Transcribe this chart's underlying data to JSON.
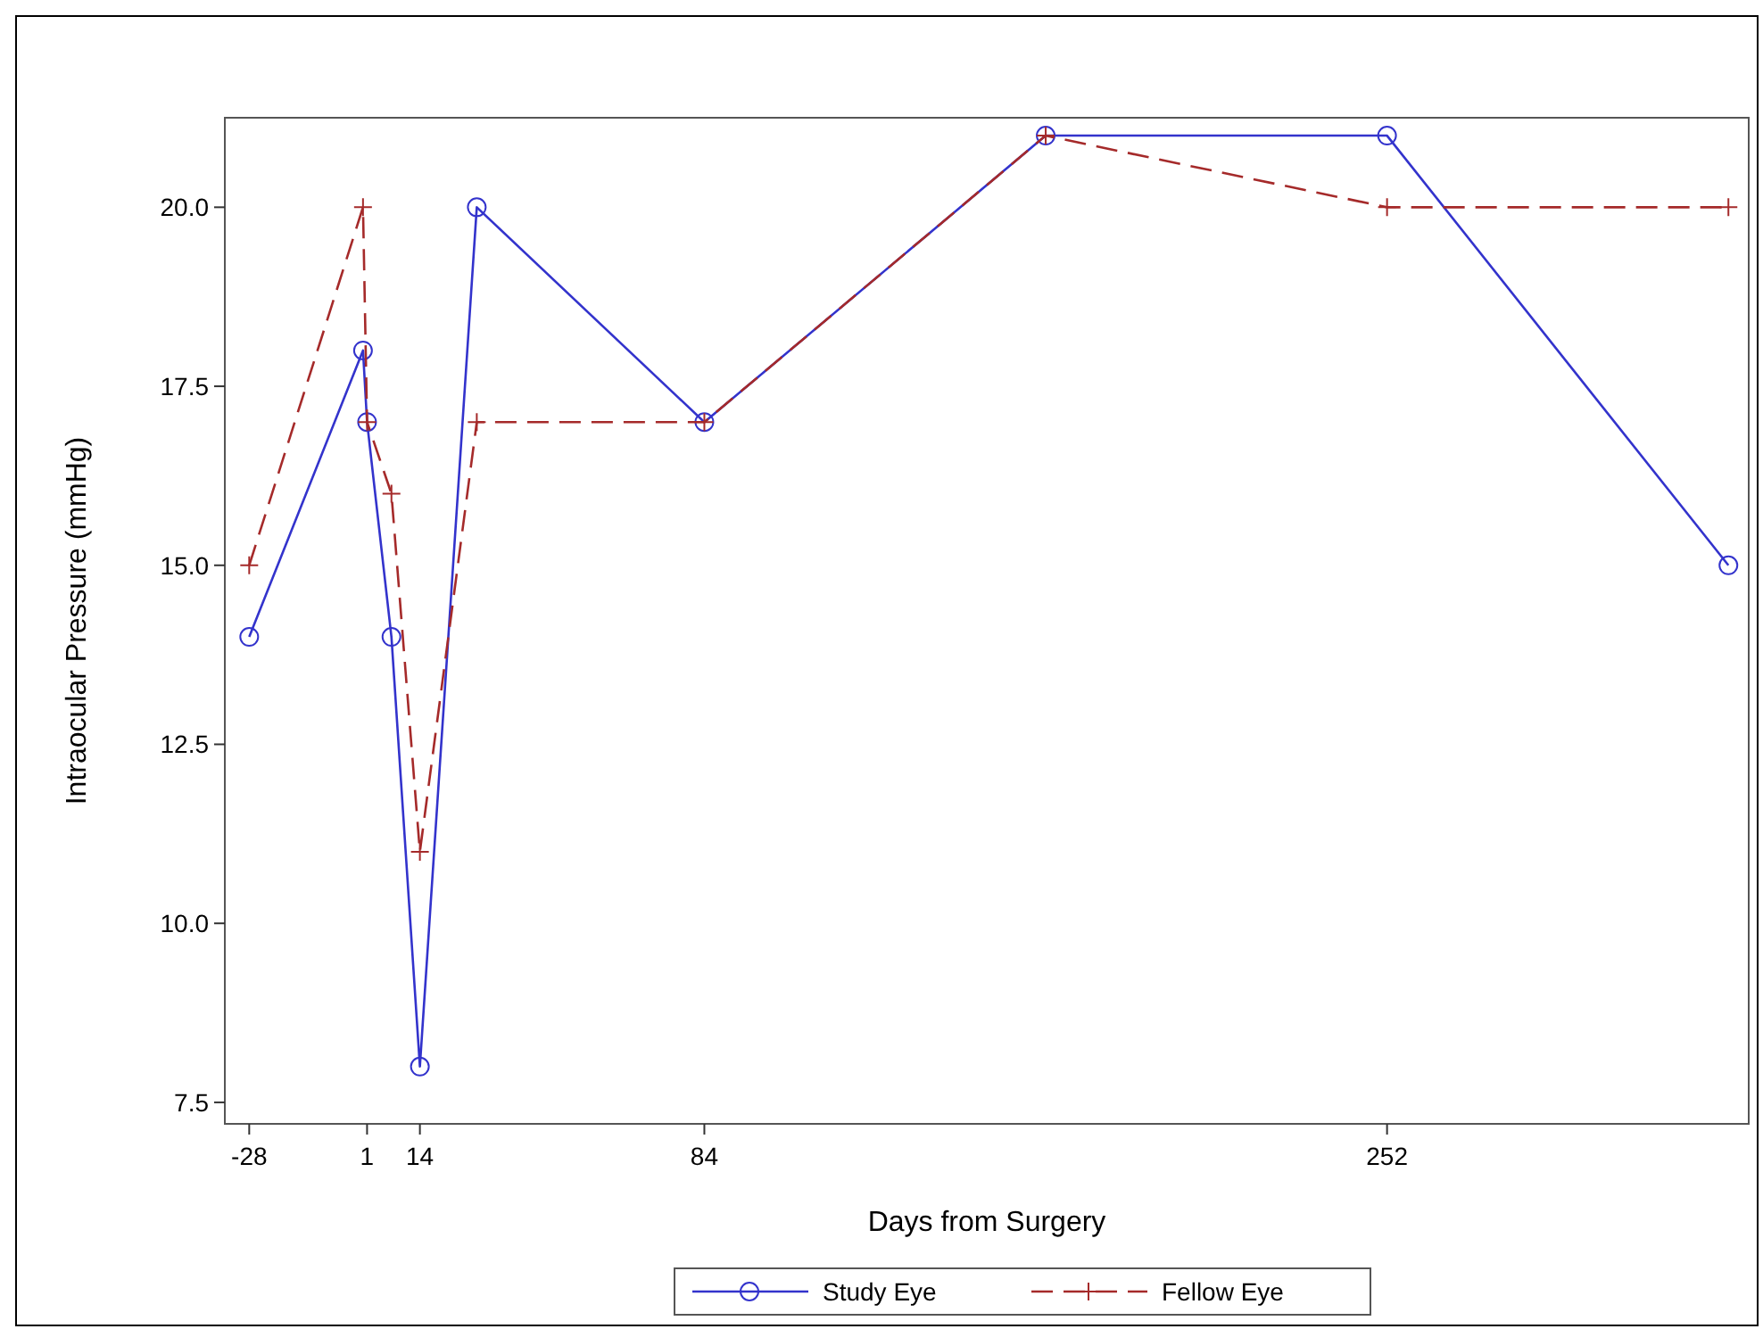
{
  "chart_data": {
    "type": "line",
    "xlabel": "Days from Surgery",
    "ylabel": "Intraocular Pressure (mmHg)",
    "xlim": [
      -34,
      341
    ],
    "ylim": [
      7.2,
      21.25
    ],
    "xticks": [
      -28,
      1,
      14,
      84,
      252
    ],
    "yticks": [
      {
        "value": 7.5,
        "label": "7.5"
      },
      {
        "value": 10,
        "label": "10.0"
      },
      {
        "value": 12.5,
        "label": "12.5"
      },
      {
        "value": 15,
        "label": "15.0"
      },
      {
        "value": 17.5,
        "label": "17.5"
      },
      {
        "value": 20,
        "label": "20.0"
      }
    ],
    "grid": false,
    "legend": "bottom",
    "series": [
      {
        "name": "Study Eye",
        "color": "#3333cc",
        "marker": "circle",
        "line_style": "solid",
        "x": [
          -28,
          0,
          1,
          7,
          14,
          28,
          84,
          168,
          252,
          336
        ],
        "values": [
          14,
          18,
          17,
          14,
          8,
          20,
          17,
          21,
          21,
          15
        ]
      },
      {
        "name": "Fellow Eye",
        "color": "#a52a2a",
        "marker": "cross",
        "line_style": "dashed",
        "x": [
          -28,
          0,
          1,
          7,
          14,
          28,
          84,
          168,
          252,
          336
        ],
        "values": [
          15,
          20,
          17,
          16,
          11,
          17,
          17,
          21,
          20,
          20
        ]
      }
    ]
  }
}
